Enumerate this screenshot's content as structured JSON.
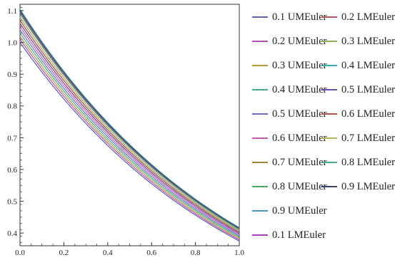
{
  "chart_data": {
    "type": "line",
    "title": "",
    "xlabel": "",
    "ylabel": "",
    "xlim": [
      0,
      1
    ],
    "ylim": [
      0.36,
      1.12
    ],
    "xticks": [
      "0.0",
      "0.2",
      "0.4",
      "0.6",
      "0.8",
      "1.0"
    ],
    "yticks": [
      "0.4",
      "0.5",
      "0.6",
      "0.7",
      "0.8",
      "0.9",
      "1.0",
      "1.1"
    ],
    "grid": false,
    "legend_position": "right",
    "series": [
      {
        "name": "0.1 UMEuler",
        "color": "#5b5fb0",
        "y0": 1.0,
        "y1": 0.375
      },
      {
        "name": "0.2 UMEuler",
        "color": "#b84fb0",
        "y0": 1.01,
        "y1": 0.379
      },
      {
        "name": "0.3 UMEuler",
        "color": "#b59c3a",
        "y0": 1.02,
        "y1": 0.383
      },
      {
        "name": "0.4 UMEuler",
        "color": "#3fae7e",
        "y0": 1.03,
        "y1": 0.387
      },
      {
        "name": "0.5 UMEuler",
        "color": "#6a6fc8",
        "y0": 1.04,
        "y1": 0.391
      },
      {
        "name": "0.6 UMEuler",
        "color": "#c05ab8",
        "y0": 1.05,
        "y1": 0.395
      },
      {
        "name": "0.7 UMEuler",
        "color": "#a0823a",
        "y0": 1.06,
        "y1": 0.399
      },
      {
        "name": "0.8 UMEuler",
        "color": "#48a860",
        "y0": 1.07,
        "y1": 0.403
      },
      {
        "name": "0.9 UMEuler",
        "color": "#4b8fb8",
        "y0": 1.08,
        "y1": 0.407
      },
      {
        "name": "0.1 LMEuler",
        "color": "#b03fc8",
        "y0": 1.09,
        "y1": 0.411
      },
      {
        "name": "0.2 LMEuler",
        "color": "#c0505a",
        "y0": 1.095,
        "y1": 0.413
      },
      {
        "name": "0.3 LMEuler",
        "color": "#8cb05a",
        "y0": 1.1,
        "y1": 0.415
      },
      {
        "name": "0.4 LMEuler",
        "color": "#3aa8b0",
        "y0": 1.105,
        "y1": 0.417
      },
      {
        "name": "0.5 LMEuler",
        "color": "#6a4fb0",
        "y0": 1.06,
        "y1": 0.399
      },
      {
        "name": "0.6 LMEuler",
        "color": "#c0504a",
        "y0": 1.07,
        "y1": 0.403
      },
      {
        "name": "0.7 LMEuler",
        "color": "#b8b05a",
        "y0": 1.08,
        "y1": 0.407
      },
      {
        "name": "0.8 LMEuler",
        "color": "#48a88a",
        "y0": 1.09,
        "y1": 0.411
      },
      {
        "name": "0.9 LMEuler",
        "color": "#3a3f78",
        "y0": 1.1,
        "y1": 0.415
      }
    ]
  }
}
